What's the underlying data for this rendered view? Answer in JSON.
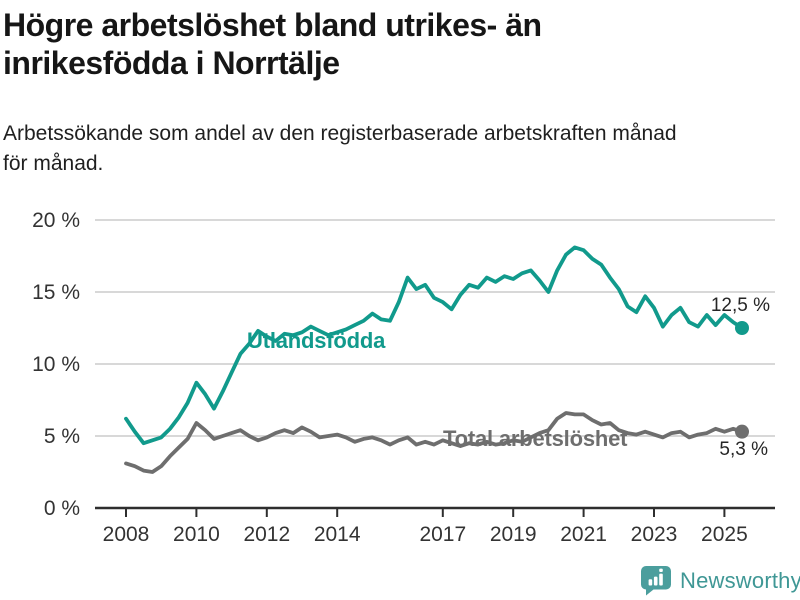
{
  "header": {
    "title": "Högre arbetslöshet bland utrikes- än\ninrikesfödda i Norrtälje",
    "subtitle": "Arbetssökande som andel av den registerbaserade arbetskraften månad\nför månad."
  },
  "chart_data": {
    "type": "line",
    "title": "Högre arbetslöshet bland utrikes- än inrikesfödda i Norrtälje",
    "subtitle": "Arbetssökande som andel av den registerbaserade arbetskraften månad för månad.",
    "xlabel": "",
    "ylabel": "",
    "ylim": [
      0,
      20
    ],
    "xlim": [
      2007.1,
      2026.4
    ],
    "grid": "horizontal",
    "legend_position": "inline-labels",
    "yticks": [
      {
        "value": 0,
        "label": "0 %"
      },
      {
        "value": 5,
        "label": "5 %"
      },
      {
        "value": 10,
        "label": "10 %"
      },
      {
        "value": 15,
        "label": "15 %"
      },
      {
        "value": 20,
        "label": "20 %"
      }
    ],
    "xticks": [
      "2008",
      "2010",
      "2012",
      "2014",
      "2017",
      "2019",
      "2021",
      "2023",
      "2025"
    ],
    "xtick_years": [
      2008,
      2010,
      2012,
      2014,
      2017,
      2019,
      2021,
      2023,
      2025
    ],
    "series": [
      {
        "name": "Utlandsfödda",
        "color": "#119a8c",
        "end_label": "12,5 %",
        "end_value": 12.5,
        "points": [
          [
            2008,
            6.2
          ],
          [
            2008.25,
            5.3
          ],
          [
            2008.5,
            4.5
          ],
          [
            2008.75,
            4.7
          ],
          [
            2009,
            4.9
          ],
          [
            2009.25,
            5.5
          ],
          [
            2009.5,
            6.3
          ],
          [
            2009.75,
            7.3
          ],
          [
            2010,
            8.7
          ],
          [
            2010.25,
            7.9
          ],
          [
            2010.5,
            6.9
          ],
          [
            2010.75,
            8.1
          ],
          [
            2011,
            9.4
          ],
          [
            2011.25,
            10.7
          ],
          [
            2011.5,
            11.4
          ],
          [
            2011.75,
            12.3
          ],
          [
            2012,
            11.9
          ],
          [
            2012.25,
            11.6
          ],
          [
            2012.5,
            12.1
          ],
          [
            2012.75,
            12.0
          ],
          [
            2013,
            12.2
          ],
          [
            2013.25,
            12.6
          ],
          [
            2013.5,
            12.3
          ],
          [
            2013.75,
            12.0
          ],
          [
            2014,
            12.2
          ],
          [
            2014.25,
            12.4
          ],
          [
            2014.5,
            12.7
          ],
          [
            2014.75,
            13.0
          ],
          [
            2015,
            13.5
          ],
          [
            2015.25,
            13.1
          ],
          [
            2015.5,
            13.0
          ],
          [
            2015.75,
            14.3
          ],
          [
            2016,
            16.0
          ],
          [
            2016.25,
            15.2
          ],
          [
            2016.5,
            15.5
          ],
          [
            2016.75,
            14.6
          ],
          [
            2017,
            14.3
          ],
          [
            2017.25,
            13.8
          ],
          [
            2017.5,
            14.8
          ],
          [
            2017.75,
            15.5
          ],
          [
            2018,
            15.3
          ],
          [
            2018.25,
            16.0
          ],
          [
            2018.5,
            15.7
          ],
          [
            2018.75,
            16.1
          ],
          [
            2019,
            15.9
          ],
          [
            2019.25,
            16.3
          ],
          [
            2019.5,
            16.5
          ],
          [
            2019.75,
            15.8
          ],
          [
            2020,
            15.0
          ],
          [
            2020.25,
            16.5
          ],
          [
            2020.5,
            17.6
          ],
          [
            2020.75,
            18.1
          ],
          [
            2021,
            17.9
          ],
          [
            2021.25,
            17.3
          ],
          [
            2021.5,
            16.9
          ],
          [
            2021.75,
            16.0
          ],
          [
            2022,
            15.2
          ],
          [
            2022.25,
            14.0
          ],
          [
            2022.5,
            13.6
          ],
          [
            2022.75,
            14.7
          ],
          [
            2023,
            13.9
          ],
          [
            2023.25,
            12.6
          ],
          [
            2023.5,
            13.4
          ],
          [
            2023.75,
            13.9
          ],
          [
            2024,
            12.9
          ],
          [
            2024.25,
            12.6
          ],
          [
            2024.5,
            13.4
          ],
          [
            2024.75,
            12.7
          ],
          [
            2025,
            13.4
          ],
          [
            2025.25,
            12.9
          ],
          [
            2025.5,
            12.5
          ]
        ]
      },
      {
        "name": "Total arbetslöshet",
        "color": "#6e6e6e",
        "end_label": "5,3 %",
        "end_value": 5.3,
        "points": [
          [
            2008,
            3.1
          ],
          [
            2008.25,
            2.9
          ],
          [
            2008.5,
            2.6
          ],
          [
            2008.75,
            2.5
          ],
          [
            2009,
            2.9
          ],
          [
            2009.25,
            3.6
          ],
          [
            2009.5,
            4.2
          ],
          [
            2009.75,
            4.8
          ],
          [
            2010,
            5.9
          ],
          [
            2010.25,
            5.4
          ],
          [
            2010.5,
            4.8
          ],
          [
            2010.75,
            5.0
          ],
          [
            2011,
            5.2
          ],
          [
            2011.25,
            5.4
          ],
          [
            2011.5,
            5.0
          ],
          [
            2011.75,
            4.7
          ],
          [
            2012,
            4.9
          ],
          [
            2012.25,
            5.2
          ],
          [
            2012.5,
            5.4
          ],
          [
            2012.75,
            5.2
          ],
          [
            2013,
            5.6
          ],
          [
            2013.25,
            5.3
          ],
          [
            2013.5,
            4.9
          ],
          [
            2013.75,
            5.0
          ],
          [
            2014,
            5.1
          ],
          [
            2014.25,
            4.9
          ],
          [
            2014.5,
            4.6
          ],
          [
            2014.75,
            4.8
          ],
          [
            2015,
            4.9
          ],
          [
            2015.25,
            4.7
          ],
          [
            2015.5,
            4.4
          ],
          [
            2015.75,
            4.7
          ],
          [
            2016,
            4.9
          ],
          [
            2016.25,
            4.4
          ],
          [
            2016.5,
            4.6
          ],
          [
            2016.75,
            4.4
          ],
          [
            2017,
            4.7
          ],
          [
            2017.25,
            4.5
          ],
          [
            2017.5,
            4.3
          ],
          [
            2017.75,
            4.5
          ],
          [
            2018,
            4.4
          ],
          [
            2018.25,
            4.6
          ],
          [
            2018.5,
            4.4
          ],
          [
            2018.75,
            4.5
          ],
          [
            2019,
            4.7
          ],
          [
            2019.25,
            4.6
          ],
          [
            2019.5,
            4.9
          ],
          [
            2019.75,
            5.2
          ],
          [
            2020,
            5.4
          ],
          [
            2020.25,
            6.2
          ],
          [
            2020.5,
            6.6
          ],
          [
            2020.75,
            6.5
          ],
          [
            2021,
            6.5
          ],
          [
            2021.25,
            6.1
          ],
          [
            2021.5,
            5.8
          ],
          [
            2021.75,
            5.9
          ],
          [
            2022,
            5.4
          ],
          [
            2022.25,
            5.2
          ],
          [
            2022.5,
            5.1
          ],
          [
            2022.75,
            5.3
          ],
          [
            2023,
            5.1
          ],
          [
            2023.25,
            4.9
          ],
          [
            2023.5,
            5.2
          ],
          [
            2023.75,
            5.3
          ],
          [
            2024,
            4.9
          ],
          [
            2024.25,
            5.1
          ],
          [
            2024.5,
            5.2
          ],
          [
            2024.75,
            5.5
          ],
          [
            2025,
            5.3
          ],
          [
            2025.25,
            5.5
          ],
          [
            2025.5,
            5.3
          ]
        ]
      }
    ],
    "colors": {
      "axis": "#2e2e2e",
      "grid": "#d8d8d8",
      "tick_text": "#333333"
    }
  },
  "footer": {
    "brand": "Newsworthy"
  }
}
